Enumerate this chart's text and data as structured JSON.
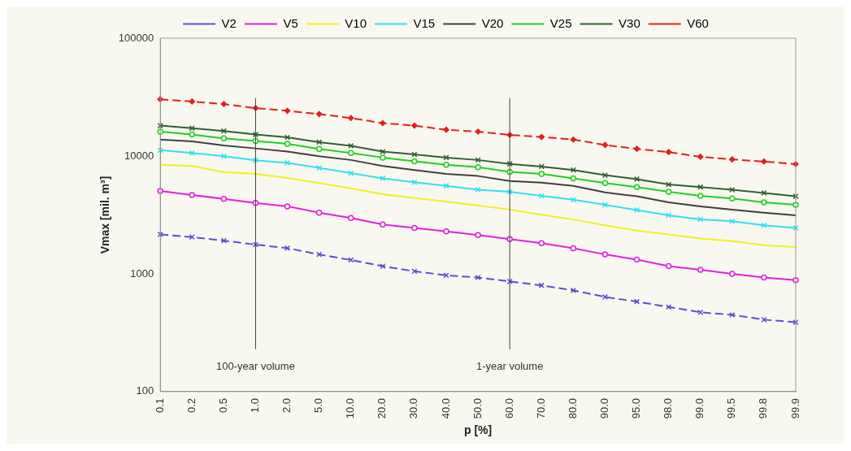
{
  "chart_data": {
    "type": "line",
    "xlabel": "p [%]",
    "ylabel": "Vmax [mil. m³]",
    "categories": [
      "0.1",
      "0.2",
      "0.5",
      "1.0",
      "2.0",
      "5.0",
      "10.0",
      "20.0",
      "30.0",
      "40.0",
      "50.0",
      "60.0",
      "70.0",
      "80.0",
      "90.0",
      "95.0",
      "98.0",
      "99.0",
      "99.5",
      "99.8",
      "99.9"
    ],
    "series": [
      {
        "name": "V2",
        "color": "#5a50d0",
        "marker": "cross",
        "line_style": "dashed",
        "values": [
          2160,
          2050,
          1910,
          1770,
          1650,
          1460,
          1310,
          1160,
          1050,
          970,
          930,
          861,
          797,
          723,
          636,
          580,
          523,
          471,
          448,
          408,
          388
        ]
      },
      {
        "name": "V5",
        "color": "#e020e0",
        "marker": "circle",
        "values": [
          5040,
          4670,
          4320,
          4000,
          3740,
          3300,
          2980,
          2620,
          2450,
          2290,
          2130,
          1970,
          1820,
          1650,
          1460,
          1320,
          1160,
          1080,
          1000,
          930,
          884
        ]
      },
      {
        "name": "V10",
        "color": "#f0f020",
        "marker": "none",
        "values": [
          8440,
          8220,
          7310,
          7040,
          6520,
          5890,
          5310,
          4740,
          4390,
          4100,
          3800,
          3510,
          3170,
          2890,
          2580,
          2330,
          2160,
          1990,
          1890,
          1750,
          1690
        ]
      },
      {
        "name": "V15",
        "color": "#30e0f0",
        "marker": "cross",
        "values": [
          11200,
          10600,
          9950,
          9210,
          8740,
          7930,
          7150,
          6460,
          5980,
          5580,
          5170,
          4970,
          4590,
          4250,
          3850,
          3480,
          3140,
          2900,
          2790,
          2580,
          2450
        ]
      },
      {
        "name": "V20",
        "color": "#404040",
        "marker": "none",
        "values": [
          13800,
          13300,
          12300,
          11600,
          10900,
          9950,
          9250,
          8220,
          7610,
          7040,
          6760,
          6130,
          5940,
          5580,
          4910,
          4550,
          4040,
          3740,
          3510,
          3300,
          3140
        ]
      },
      {
        "name": "V25",
        "color": "#20d020",
        "marker": "circle",
        "values": [
          16100,
          15200,
          14100,
          13400,
          12700,
          11500,
          10600,
          9700,
          9020,
          8440,
          8020,
          7340,
          7040,
          6460,
          5890,
          5450,
          4970,
          4590,
          4360,
          4040,
          3850
        ]
      },
      {
        "name": "V30",
        "color": "#306030",
        "marker": "cross",
        "values": [
          18100,
          17200,
          16300,
          15200,
          14400,
          13100,
          12200,
          10900,
          10300,
          9700,
          9250,
          8570,
          8140,
          7610,
          6870,
          6360,
          5730,
          5450,
          5170,
          4860,
          4550
        ]
      },
      {
        "name": "V60",
        "color": "#e02020",
        "marker": "diamond",
        "line_style": "dashed",
        "values": [
          30300,
          29000,
          27600,
          25500,
          24200,
          22700,
          21000,
          19000,
          18100,
          16700,
          16100,
          15100,
          14500,
          13800,
          12400,
          11500,
          10800,
          9850,
          9360,
          8970,
          8530
        ]
      }
    ],
    "log": true,
    "ylim": [
      100,
      100000
    ],
    "yticks": [
      100,
      1000,
      10000,
      100000
    ],
    "ref_lines": [
      {
        "axis": "x",
        "value": "1.0",
        "label": "100-year volume",
        "color": "#404040"
      },
      {
        "axis": "x",
        "value": "60.0",
        "label": "1-year volume",
        "color": "#404040"
      }
    ],
    "grid": false,
    "legend": "top"
  }
}
